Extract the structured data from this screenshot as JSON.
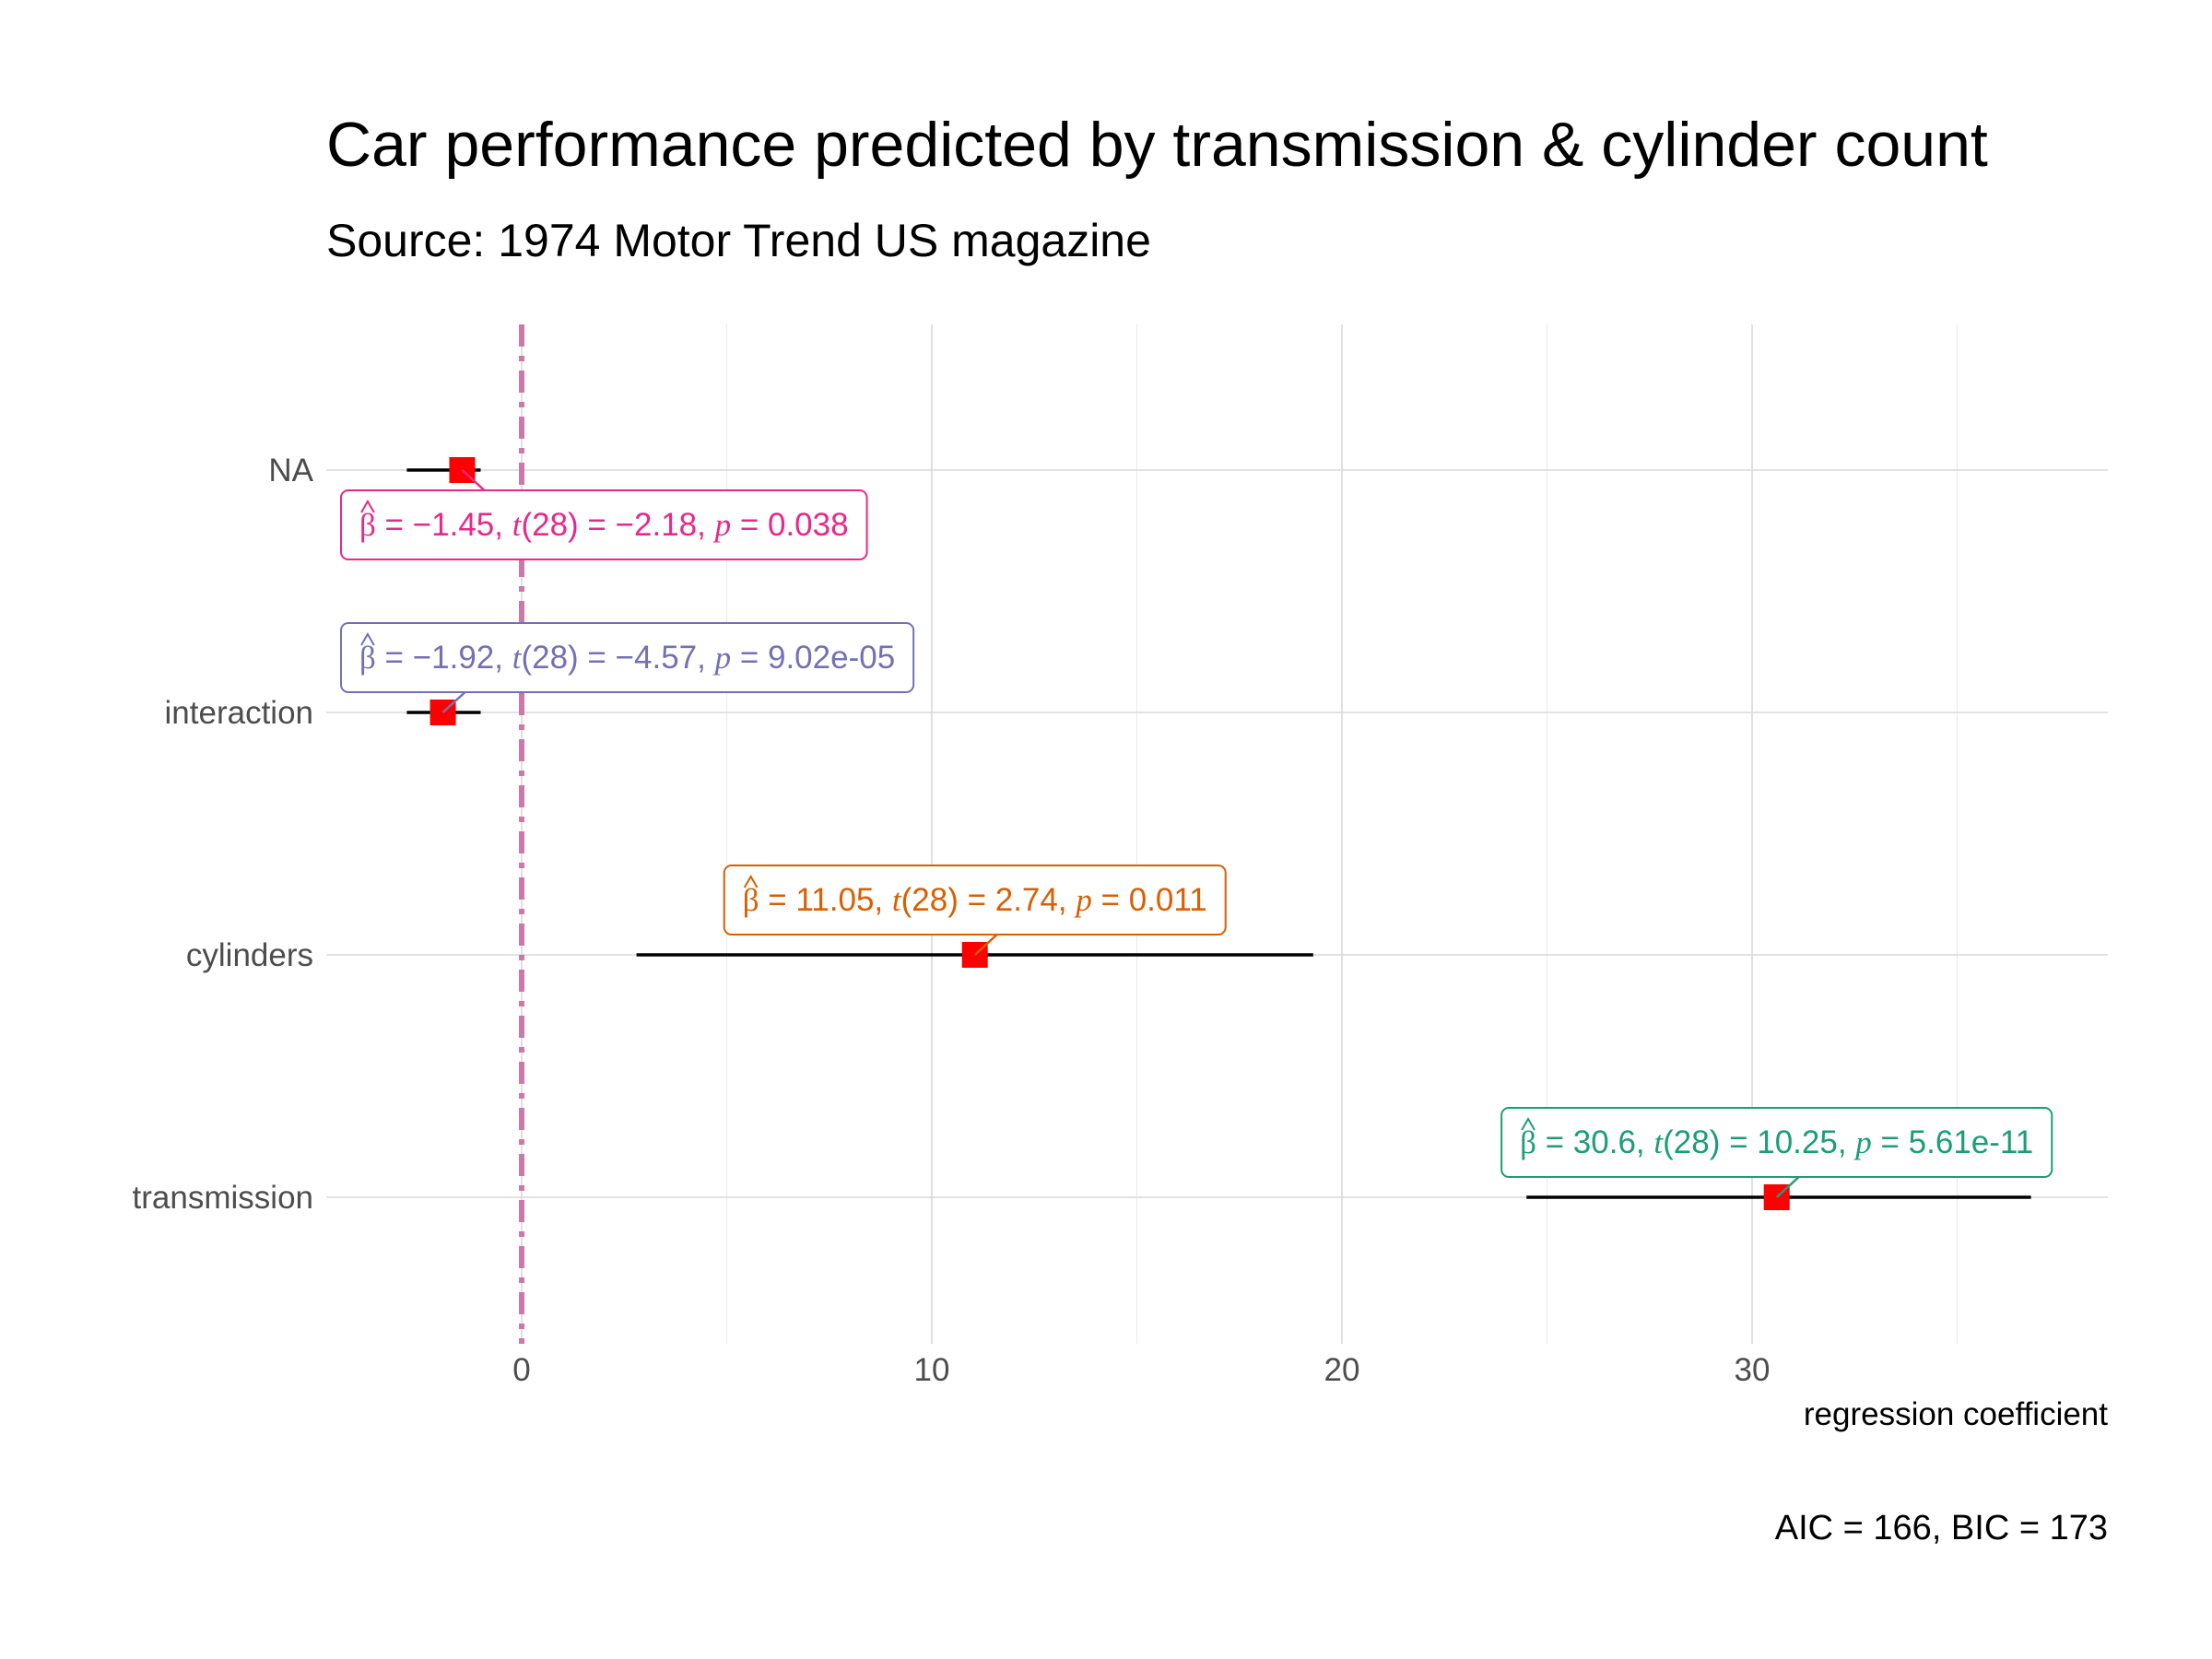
{
  "chart_data": {
    "type": "scatter",
    "title": "Car performance predicted by transmission & cylinder count",
    "subtitle": "Source: 1974 Motor Trend US magazine",
    "xlabel": "regression coefficient",
    "caption": "AIC = 166, BIC = 173",
    "xlim": [
      -5,
      38
    ],
    "x_ticks": [
      0,
      10,
      20,
      30
    ],
    "x_tick_labels": [
      "0",
      "10",
      "20",
      "30"
    ],
    "reference_line_x": 0,
    "reference_line_color": "#cc79a7",
    "point_color": "#ff0000",
    "categories": [
      "NA",
      "interaction",
      "cylinders",
      "transmission"
    ],
    "terms": [
      {
        "term": "NA",
        "estimate": -1.45,
        "ci_low": -2.8,
        "ci_high": -1.0,
        "label": {
          "estimate": "−1.45",
          "df": "28",
          "statistic": "−2.18",
          "p_value": "0.038"
        },
        "label_color": "#e7298a",
        "label_position": "below"
      },
      {
        "term": "interaction",
        "estimate": -1.92,
        "ci_low": -2.8,
        "ci_high": -1.0,
        "label": {
          "estimate": "−1.92",
          "df": "28",
          "statistic": "−4.57",
          "p_value": "9.02e-05"
        },
        "label_color": "#7570b3",
        "label_position": "above"
      },
      {
        "term": "cylinders",
        "estimate": 11.05,
        "ci_low": 2.8,
        "ci_high": 19.3,
        "label": {
          "estimate": "11.05",
          "df": "28",
          "statistic": "2.74",
          "p_value": "0.011"
        },
        "label_color": "#d95f02",
        "label_position": "above"
      },
      {
        "term": "transmission",
        "estimate": 30.6,
        "ci_low": 24.5,
        "ci_high": 36.8,
        "label": {
          "estimate": "30.6",
          "df": "28",
          "statistic": "10.25",
          "p_value": "5.61e-11"
        },
        "label_color": "#1b9e77",
        "label_position": "above"
      }
    ],
    "grid": true
  }
}
